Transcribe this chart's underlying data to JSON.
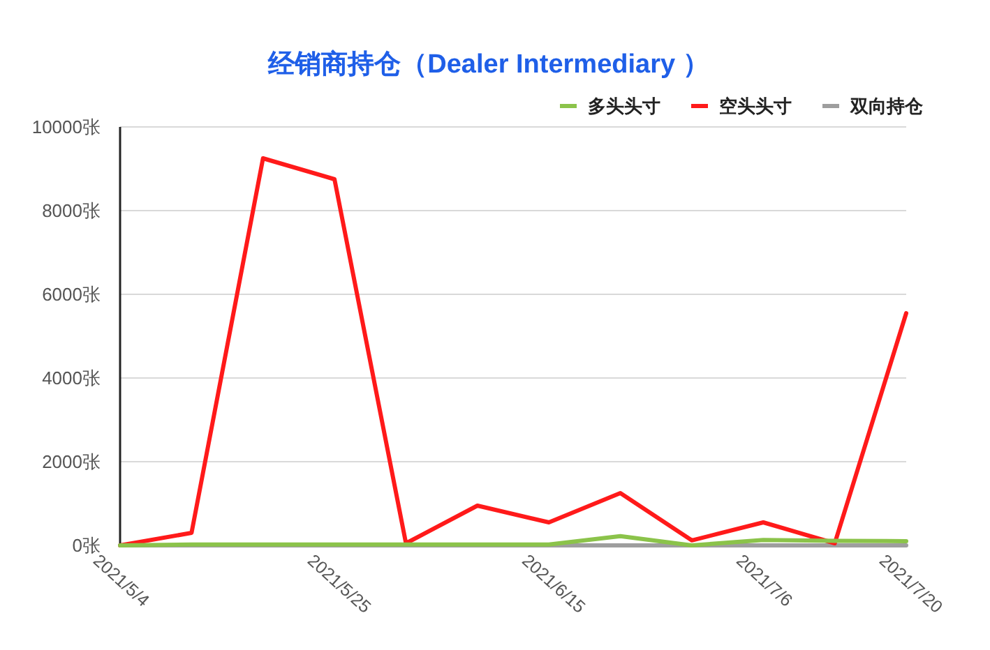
{
  "chart_data": {
    "type": "line",
    "title": "经销商持仓（Dealer Intermediary ）",
    "categories": [
      "2021/5/4",
      null,
      null,
      "2021/5/25",
      null,
      null,
      "2021/6/15",
      null,
      null,
      "2021/7/6",
      null,
      "2021/7/20"
    ],
    "series": [
      {
        "name": "多头头寸",
        "color": "#8bc34a",
        "values": [
          0,
          20,
          20,
          20,
          20,
          20,
          20,
          220,
          0,
          130,
          110,
          100
        ]
      },
      {
        "name": "空头头寸",
        "color": "#ff1a1a",
        "values": [
          0,
          300,
          9250,
          8750,
          50,
          950,
          550,
          1250,
          120,
          550,
          50,
          5550
        ]
      },
      {
        "name": "双向持仓",
        "color": "#9e9e9e",
        "values": [
          0,
          0,
          0,
          0,
          0,
          0,
          0,
          0,
          0,
          0,
          0,
          0
        ]
      }
    ],
    "ylim": [
      0,
      10000
    ],
    "yticks": [
      {
        "value": 0,
        "label": "0张"
      },
      {
        "value": 2000,
        "label": "2000张"
      },
      {
        "value": 4000,
        "label": "4000张"
      },
      {
        "value": 6000,
        "label": "6000张"
      },
      {
        "value": 8000,
        "label": "8000张"
      },
      {
        "value": 10000,
        "label": "10000张"
      }
    ],
    "grid": "y",
    "legend": "top right"
  }
}
